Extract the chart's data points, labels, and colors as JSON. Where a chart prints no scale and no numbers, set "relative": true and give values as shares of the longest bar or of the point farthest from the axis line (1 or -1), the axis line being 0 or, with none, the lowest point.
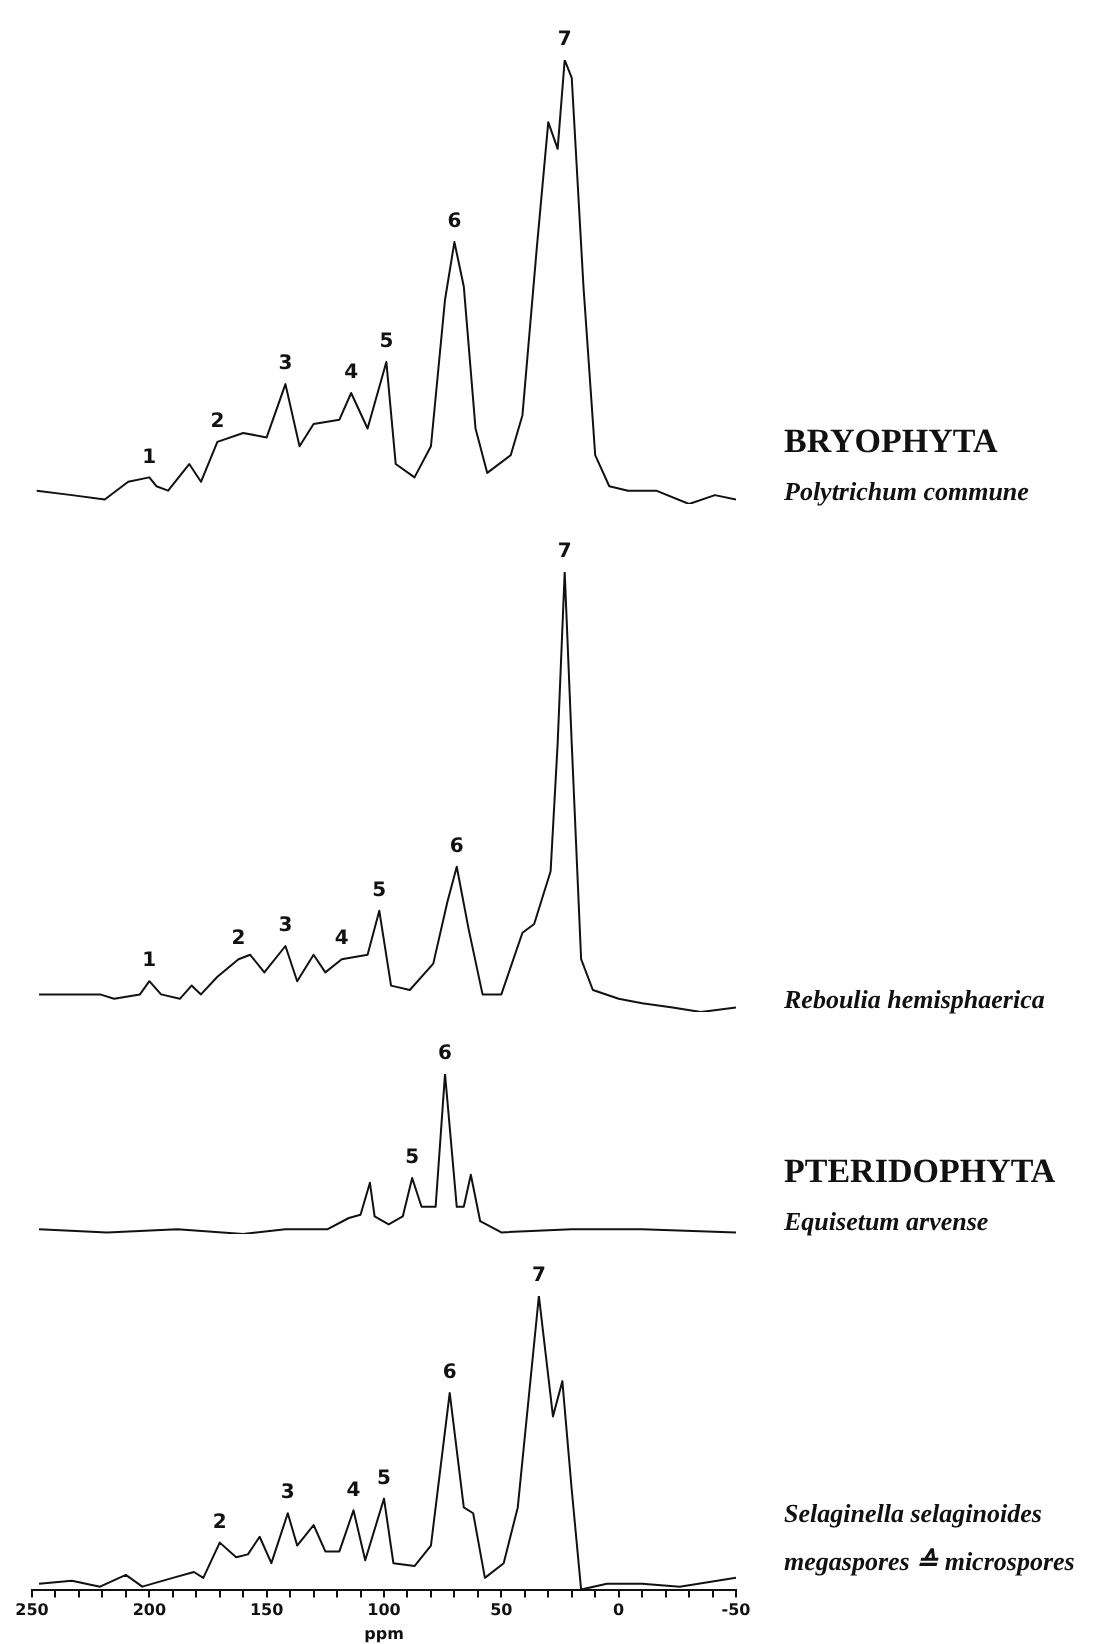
{
  "chart_data": [
    {
      "type": "line",
      "relative": true,
      "marker": "none",
      "line_style": "solid",
      "tick_labels": false,
      "xlim": [
        250,
        -50
      ],
      "series": [
        {
          "name": "Polytrichum commune",
          "color": "#111111",
          "x": [
            248,
            233,
            219,
            209,
            200,
            197,
            192,
            183,
            178,
            171,
            160,
            150,
            142,
            136,
            130,
            119,
            114,
            107,
            99,
            95,
            87,
            80,
            74,
            70,
            66,
            61,
            56,
            46,
            41,
            35,
            30,
            26,
            23,
            20,
            15,
            10,
            4,
            -4,
            -16,
            -30,
            -41,
            -50
          ],
          "values": [
            0.03,
            0.02,
            0.01,
            0.05,
            0.06,
            0.04,
            0.03,
            0.09,
            0.05,
            0.14,
            0.16,
            0.15,
            0.27,
            0.13,
            0.18,
            0.19,
            0.25,
            0.17,
            0.32,
            0.09,
            0.06,
            0.13,
            0.46,
            0.59,
            0.49,
            0.17,
            0.07,
            0.11,
            0.2,
            0.57,
            0.86,
            0.8,
            1,
            0.96,
            0.49,
            0.11,
            0.04,
            0.03,
            0.03,
            0,
            0.02,
            0.01
          ]
        }
      ],
      "annotations": [
        "BRYOPHYTA",
        {
          "text": "1",
          "x": 200,
          "y": 0.06
        },
        {
          "text": "2",
          "x": 171,
          "y": 0.14
        },
        {
          "text": "3",
          "x": 142,
          "y": 0.27
        },
        {
          "text": "4",
          "x": 114,
          "y": 0.25
        },
        {
          "text": "5",
          "x": 99,
          "y": 0.32
        },
        {
          "text": "6",
          "x": 70,
          "y": 0.59
        },
        {
          "text": "7",
          "x": 23,
          "y": 1
        }
      ]
    },
    {
      "type": "line",
      "relative": true,
      "marker": "none",
      "line_style": "solid",
      "tick_labels": false,
      "xlim": [
        250,
        -50
      ],
      "series": [
        {
          "name": "Reboulia hemisphaerica",
          "color": "#111111",
          "x": [
            247,
            233,
            221,
            215,
            204,
            200,
            195,
            187,
            182,
            178,
            171,
            162,
            157,
            151,
            142,
            137,
            130,
            125,
            118,
            107,
            102,
            97,
            89,
            79,
            73,
            69,
            64,
            58,
            50,
            41,
            36,
            29,
            26,
            23,
            20,
            16,
            11,
            0,
            -10,
            -23,
            -35,
            -50
          ],
          "values": [
            0.04,
            0.04,
            0.04,
            0.03,
            0.04,
            0.07,
            0.04,
            0.03,
            0.06,
            0.04,
            0.08,
            0.12,
            0.13,
            0.09,
            0.15,
            0.07,
            0.13,
            0.09,
            0.12,
            0.13,
            0.23,
            0.06,
            0.05,
            0.11,
            0.25,
            0.33,
            0.19,
            0.04,
            0.04,
            0.18,
            0.2,
            0.32,
            0.61,
            1,
            0.61,
            0.12,
            0.05,
            0.03,
            0.02,
            0.01,
            0,
            0.01
          ]
        }
      ],
      "annotations": [
        {
          "text": "1",
          "x": 200,
          "y": 0.07
        },
        {
          "text": "2",
          "x": 162,
          "y": 0.12
        },
        {
          "text": "3",
          "x": 142,
          "y": 0.15
        },
        {
          "text": "4",
          "x": 118,
          "y": 0.12
        },
        {
          "text": "5",
          "x": 102,
          "y": 0.23
        },
        {
          "text": "6",
          "x": 69,
          "y": 0.33
        },
        {
          "text": "7",
          "x": 23,
          "y": 1
        }
      ]
    },
    {
      "type": "line",
      "relative": true,
      "marker": "none",
      "line_style": "solid",
      "tick_labels": false,
      "xlim": [
        250,
        -50
      ],
      "series": [
        {
          "name": "Equisetum arvense",
          "color": "#111111",
          "x": [
            247,
            218,
            188,
            160,
            142,
            124,
            115,
            110,
            106,
            104,
            98,
            92,
            88,
            84,
            78,
            74,
            69,
            66,
            63,
            59,
            50,
            20,
            -10,
            -50
          ],
          "values": [
            0.03,
            0.01,
            0.03,
            0,
            0.03,
            0.03,
            0.1,
            0.12,
            0.32,
            0.11,
            0.06,
            0.11,
            0.35,
            0.17,
            0.17,
            1,
            0.17,
            0.17,
            0.37,
            0.08,
            0.01,
            0.03,
            0.03,
            0.01
          ]
        }
      ],
      "annotations": [
        "PTERIDOPHYTA",
        {
          "text": "5",
          "x": 88,
          "y": 0.35
        },
        {
          "text": "6",
          "x": 74,
          "y": 1
        }
      ]
    },
    {
      "type": "line",
      "relative": true,
      "marker": "none",
      "line_style": "solid",
      "tick_labels": "x",
      "xlim": [
        250,
        -50
      ],
      "xlabel": "ppm",
      "xticks": [
        250,
        {
          "value": 240,
          "label": null
        },
        {
          "value": 230,
          "label": null
        },
        {
          "value": 220,
          "label": null
        },
        {
          "value": 210,
          "label": null
        },
        200,
        {
          "value": 190,
          "label": null
        },
        {
          "value": 180,
          "label": null
        },
        {
          "value": 170,
          "label": null
        },
        {
          "value": 160,
          "label": null
        },
        150,
        {
          "value": 140,
          "label": null
        },
        {
          "value": 130,
          "label": null
        },
        {
          "value": 120,
          "label": null
        },
        {
          "value": 110,
          "label": null
        },
        100,
        {
          "value": 90,
          "label": null
        },
        {
          "value": 80,
          "label": null
        },
        {
          "value": 70,
          "label": null
        },
        {
          "value": 60,
          "label": null
        },
        50,
        {
          "value": 40,
          "label": null
        },
        {
          "value": 30,
          "label": null
        },
        {
          "value": 20,
          "label": null
        },
        {
          "value": 10,
          "label": null
        },
        0,
        {
          "value": -10,
          "label": null
        },
        {
          "value": -20,
          "label": null
        },
        {
          "value": -30,
          "label": null
        },
        {
          "value": -40,
          "label": null
        },
        -50
      ],
      "series": [
        {
          "name": "Selaginella selaginoides megaspores ≙ microspores",
          "color": "#111111",
          "x": [
            247,
            233,
            221,
            210,
            203,
            190,
            181,
            177,
            170,
            163,
            158,
            153,
            148,
            141,
            137,
            130,
            125,
            119,
            113,
            108,
            100,
            96,
            87,
            80,
            72,
            66,
            62,
            57,
            49,
            43,
            34,
            28,
            24,
            20,
            16,
            5,
            -10,
            -26,
            -50
          ],
          "values": [
            0.02,
            0.03,
            0.01,
            0.05,
            0.01,
            0.04,
            0.06,
            0.04,
            0.16,
            0.11,
            0.12,
            0.18,
            0.09,
            0.26,
            0.15,
            0.22,
            0.13,
            0.13,
            0.27,
            0.1,
            0.31,
            0.09,
            0.08,
            0.15,
            0.67,
            0.28,
            0.26,
            0.04,
            0.09,
            0.28,
            1,
            0.59,
            0.71,
            0.34,
            0,
            0.02,
            0.02,
            0.01,
            0.04
          ]
        }
      ],
      "annotations": [
        {
          "text": "2",
          "x": 170,
          "y": 0.16
        },
        {
          "text": "3",
          "x": 141,
          "y": 0.26
        },
        {
          "text": "4",
          "x": 113,
          "y": 0.27
        },
        {
          "text": "5",
          "x": 100,
          "y": 0.31
        },
        {
          "text": "6",
          "x": 72,
          "y": 0.67
        },
        {
          "text": "7",
          "x": 34,
          "y": 1
        }
      ]
    }
  ]
}
